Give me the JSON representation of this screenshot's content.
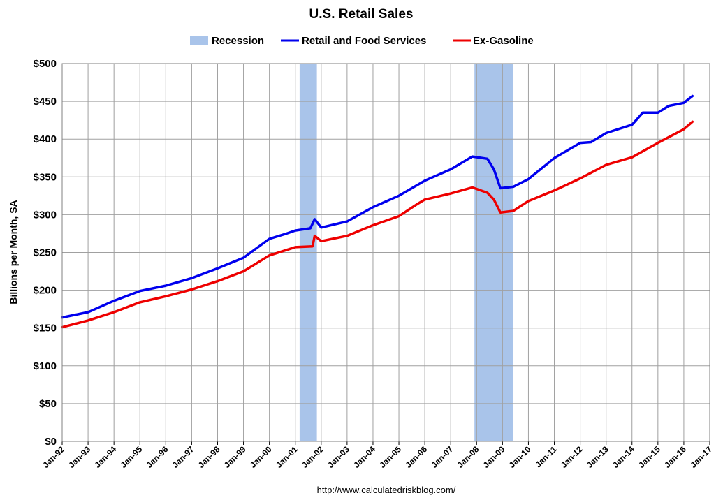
{
  "chart_data": {
    "type": "line",
    "title": "U.S. Retail Sales",
    "ylabel": "Billions per Month, SA",
    "xlabel": "",
    "credit": "http://www.calculatedriskblog.com/",
    "ylim": [
      0,
      500
    ],
    "xlim": [
      "1992-01",
      "2017-01"
    ],
    "y_ticks": [
      "$0",
      "$50",
      "$100",
      "$150",
      "$200",
      "$250",
      "$300",
      "$350",
      "$400",
      "$450",
      "$500"
    ],
    "y_tick_values": [
      0,
      50,
      100,
      150,
      200,
      250,
      300,
      350,
      400,
      450,
      500
    ],
    "x_ticks": [
      "Jan-92",
      "Jan-93",
      "Jan-94",
      "Jan-95",
      "Jan-96",
      "Jan-97",
      "Jan-98",
      "Jan-99",
      "Jan-00",
      "Jan-01",
      "Jan-02",
      "Jan-03",
      "Jan-04",
      "Jan-05",
      "Jan-06",
      "Jan-07",
      "Jan-08",
      "Jan-09",
      "Jan-10",
      "Jan-11",
      "Jan-12",
      "Jan-13",
      "Jan-14",
      "Jan-15",
      "Jan-16",
      "Jan-17"
    ],
    "x_tick_dates": [
      "1992-01",
      "1993-01",
      "1994-01",
      "1995-01",
      "1996-01",
      "1997-01",
      "1998-01",
      "1999-01",
      "2000-01",
      "2001-01",
      "2002-01",
      "2003-01",
      "2004-01",
      "2005-01",
      "2006-01",
      "2007-01",
      "2008-01",
      "2009-01",
      "2010-01",
      "2011-01",
      "2012-01",
      "2013-01",
      "2014-01",
      "2015-01",
      "2016-01",
      "2017-01"
    ],
    "grid": true,
    "legend_position": "top-center",
    "recessions": [
      {
        "start": "2001-03",
        "end": "2001-11"
      },
      {
        "start": "2007-12",
        "end": "2009-06"
      }
    ],
    "recession_label": "Recession",
    "recession_color": "#a9c4ea",
    "series": [
      {
        "name": "Retail and Food Services",
        "color": "#0000ee",
        "x": [
          "1992-01",
          "1993-01",
          "1994-01",
          "1995-01",
          "1996-01",
          "1997-01",
          "1998-01",
          "1999-01",
          "2000-01",
          "2000-09",
          "2001-01",
          "2001-08",
          "2001-10",
          "2002-01",
          "2003-01",
          "2004-01",
          "2005-01",
          "2006-01",
          "2007-01",
          "2007-11",
          "2008-06",
          "2008-09",
          "2008-12",
          "2009-06",
          "2010-01",
          "2011-01",
          "2012-01",
          "2012-06",
          "2013-01",
          "2014-01",
          "2014-06",
          "2015-01",
          "2015-06",
          "2016-01",
          "2016-05"
        ],
        "values": [
          164,
          171,
          186,
          199,
          206,
          216,
          229,
          243,
          268,
          275,
          279,
          282,
          294,
          283,
          291,
          310,
          325,
          345,
          360,
          377,
          374,
          360,
          335,
          337,
          347,
          375,
          395,
          396,
          408,
          419,
          435,
          435,
          444,
          448,
          457
        ]
      },
      {
        "name": "Ex-Gasoline",
        "color": "#ee0000",
        "x": [
          "1992-01",
          "1993-01",
          "1994-01",
          "1995-01",
          "1996-01",
          "1997-01",
          "1998-01",
          "1999-01",
          "2000-01",
          "2001-01",
          "2001-09",
          "2001-10",
          "2002-01",
          "2003-01",
          "2004-01",
          "2005-01",
          "2005-10",
          "2006-01",
          "2007-01",
          "2007-11",
          "2008-06",
          "2008-09",
          "2008-12",
          "2009-06",
          "2010-01",
          "2011-01",
          "2012-01",
          "2013-01",
          "2014-01",
          "2015-01",
          "2016-01",
          "2016-05"
        ],
        "values": [
          151,
          160,
          171,
          184,
          192,
          201,
          212,
          225,
          246,
          257,
          258,
          272,
          265,
          272,
          286,
          298,
          315,
          320,
          328,
          336,
          329,
          320,
          303,
          305,
          318,
          332,
          348,
          366,
          376,
          395,
          413,
          423
        ]
      }
    ]
  }
}
